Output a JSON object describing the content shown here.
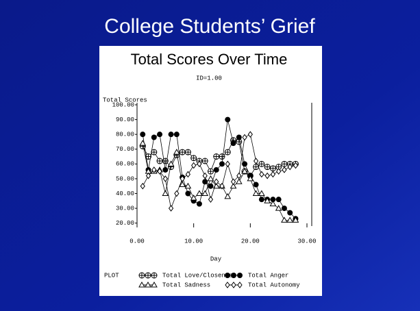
{
  "slide_title": "College Students’ Grief",
  "chart_data": {
    "type": "line",
    "title": "Total Scores Over Time",
    "subtitle": "ID=1.00",
    "y_label": "Total Scores",
    "x_label": "Day",
    "legend_title": "PLOT",
    "x": [
      1,
      2,
      3,
      4,
      5,
      6,
      7,
      8,
      9,
      10,
      11,
      12,
      13,
      14,
      15,
      16,
      17,
      18,
      19,
      20,
      21,
      22,
      23,
      24,
      25,
      26,
      27,
      28
    ],
    "xlim": [
      0,
      30
    ],
    "xticks": [
      {
        "value": 0,
        "label": "0.00"
      },
      {
        "value": 10,
        "label": "10.00"
      },
      {
        "value": 20,
        "label": "20.00"
      },
      {
        "value": 30,
        "label": "30.00"
      }
    ],
    "ylim": [
      18,
      100
    ],
    "yticks": [
      {
        "value": 20,
        "label": "20.00"
      },
      {
        "value": 30,
        "label": "30.00"
      },
      {
        "value": 40,
        "label": "40.00"
      },
      {
        "value": 50,
        "label": "50.00"
      },
      {
        "value": 60,
        "label": "60.00"
      },
      {
        "value": 70,
        "label": "70.00"
      },
      {
        "value": 80,
        "label": "80.00"
      },
      {
        "value": 90,
        "label": "90.00"
      },
      {
        "value": 100,
        "label": "100.00"
      }
    ],
    "series": [
      {
        "name": "Total Love/Closeness",
        "color": "#000000",
        "values": [
          72,
          65,
          68,
          62,
          62,
          58,
          66,
          68,
          68,
          64,
          62,
          62,
          55,
          65,
          65,
          68,
          76,
          75,
          55,
          52,
          58,
          60,
          58,
          57,
          58,
          60,
          60,
          60
        ]
      },
      {
        "name": "Total Anger",
        "color": "#000000",
        "values": [
          80,
          56,
          78,
          80,
          56,
          80,
          80,
          51,
          40,
          35,
          33,
          48,
          45,
          56,
          60,
          90,
          74,
          78,
          60,
          52,
          46,
          36,
          36,
          36,
          36,
          30,
          27,
          23
        ]
      },
      {
        "name": "Total Sadness",
        "color": "#000000",
        "values": [
          74,
          55,
          55,
          56,
          40,
          60,
          68,
          46,
          45,
          37,
          40,
          40,
          50,
          45,
          45,
          38,
          45,
          48,
          55,
          50,
          40,
          40,
          35,
          33,
          30,
          22,
          22,
          22
        ]
      },
      {
        "name": "Total Autonomy",
        "color": "#000000",
        "values": [
          45,
          52,
          56,
          55,
          50,
          30,
          40,
          50,
          53,
          59,
          60,
          52,
          36,
          48,
          45,
          60,
          48,
          52,
          78,
          80,
          62,
          53,
          52,
          53,
          55,
          56,
          58,
          59
        ]
      }
    ]
  }
}
